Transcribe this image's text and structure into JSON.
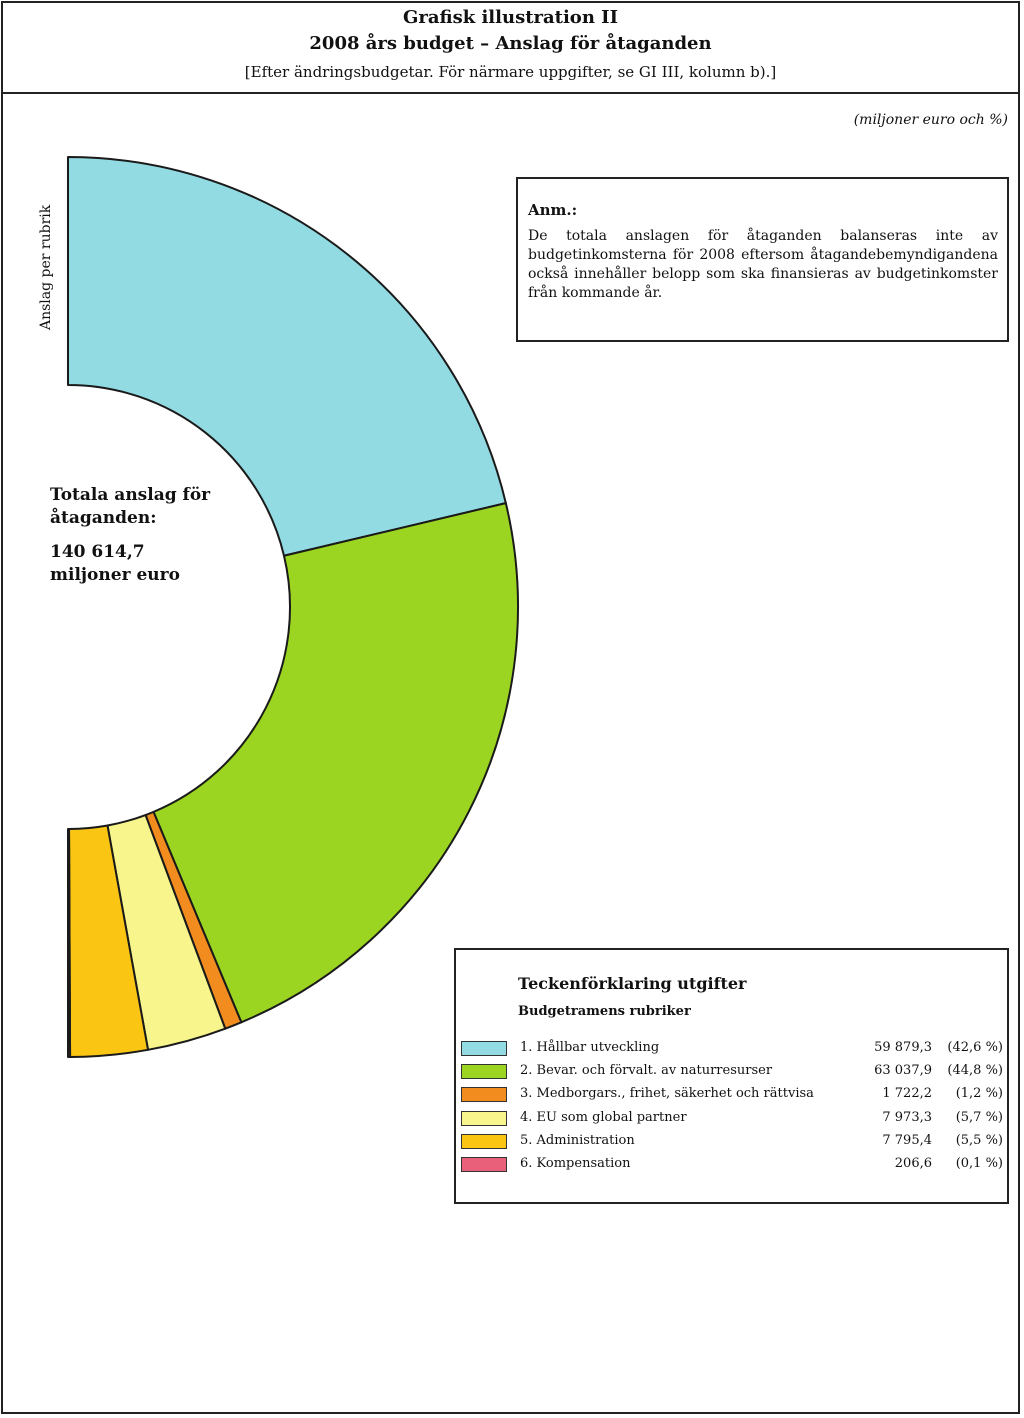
{
  "header": {
    "title_line1": "Grafisk illustration II",
    "title_line2": "2008 års budget – Anslag för åtaganden",
    "subtitle": "[Efter ändringsbudgetar. För närmare uppgifter, se GI III, kolumn b).]"
  },
  "unit_label": "(miljoner euro och %)",
  "vertical_label": "Anslag per rubrik",
  "note": {
    "label": "Anm.:",
    "text": "De totala anslagen för åtaganden balanseras inte av budgetinkomsterna för 2008 eftersom åtagandebemyndigandena också innehåller belopp som ska finansieras av budgetinkomster från kommande år."
  },
  "total": {
    "line1": "Totala anslag för",
    "line2": "åtaganden:",
    "line3": "140 614,7",
    "line4": "miljoner euro"
  },
  "legend": {
    "title": "Teckenförklaring utgifter",
    "subtitle": "Budgetramens rubriker"
  },
  "chart_data": {
    "type": "pie",
    "style": "half-donut",
    "total": 140614.7,
    "series": [
      {
        "label": "1. Hållbar utveckling",
        "value": 59879.3,
        "value_text": "59 879,3",
        "percent_text": "(42,6 %)",
        "color": "#93dbe3"
      },
      {
        "label": "2. Bevar. och förvalt. av naturresurser",
        "value": 63037.9,
        "value_text": "63 037,9",
        "percent_text": "(44,8 %)",
        "color": "#9bd421"
      },
      {
        "label": "3. Medborgars., frihet, säkerhet och rättvisa",
        "value": 1722.2,
        "value_text": "1 722,2",
        "percent_text": "(1,2 %)",
        "color": "#f28c1e"
      },
      {
        "label": "4. EU som global partner",
        "value": 7973.3,
        "value_text": "7 973,3",
        "percent_text": "(5,7 %)",
        "color": "#f7f58c"
      },
      {
        "label": "5. Administration",
        "value": 7795.4,
        "value_text": "7 795,4",
        "percent_text": "(5,5 %)",
        "color": "#fac513"
      },
      {
        "label": "6. Kompensation",
        "value": 206.6,
        "value_text": "206,6",
        "percent_text": "(0,1 %)",
        "color": "#e9607a"
      }
    ]
  }
}
